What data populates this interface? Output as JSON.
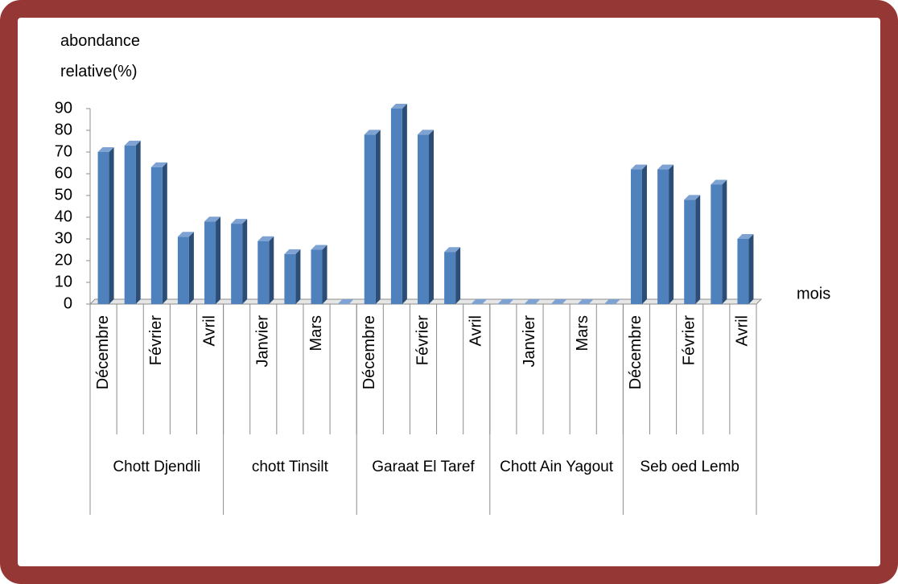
{
  "chart_data": {
    "type": "bar",
    "y_label": "abondance relative(%)",
    "x_label": "mois",
    "categories": [
      "Décembre",
      null,
      "Février",
      null,
      "Avril",
      null,
      "Janvier",
      null,
      "Mars",
      null,
      "Décembre",
      null,
      "Février",
      null,
      "Avril",
      null,
      "Janvier",
      null,
      "Mars",
      null,
      "Décembre",
      null,
      "Février",
      null,
      "Avril"
    ],
    "groups": [
      "Chott Djendli",
      "chott Tinsilt",
      "Garaat El Taref",
      "Chott Ain Yagout",
      "Seb oed Lemb"
    ],
    "values": [
      70,
      73,
      63,
      31,
      38,
      37,
      29,
      23,
      25,
      0,
      78,
      90,
      78,
      24,
      0,
      0,
      0,
      0,
      0,
      0,
      62,
      62,
      48,
      55,
      30
    ],
    "color": "#4f81bd",
    "ylim": [
      0,
      90
    ],
    "yticks": [
      0,
      10,
      20,
      30,
      40,
      50,
      60,
      70,
      80,
      90
    ],
    "grid": false
  }
}
